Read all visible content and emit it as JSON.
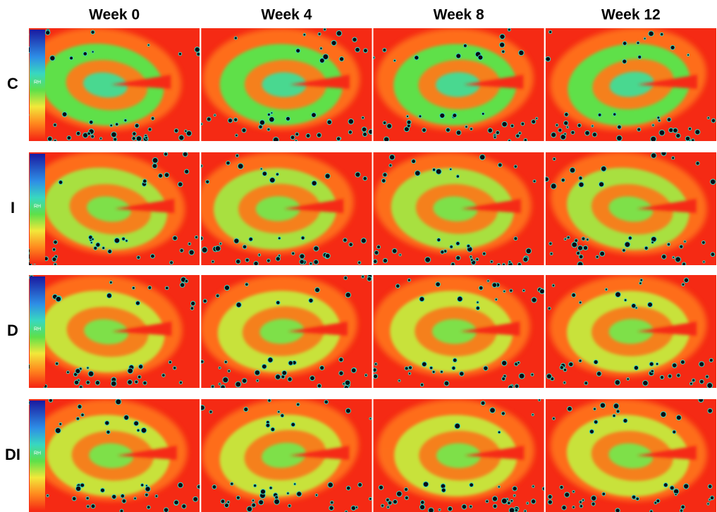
{
  "columns": [
    "Week 0",
    "Week 4",
    "Week 8",
    "Week 12"
  ],
  "rows": [
    "C",
    "I",
    "D",
    "DI"
  ],
  "colorbar_label": "RH"
}
